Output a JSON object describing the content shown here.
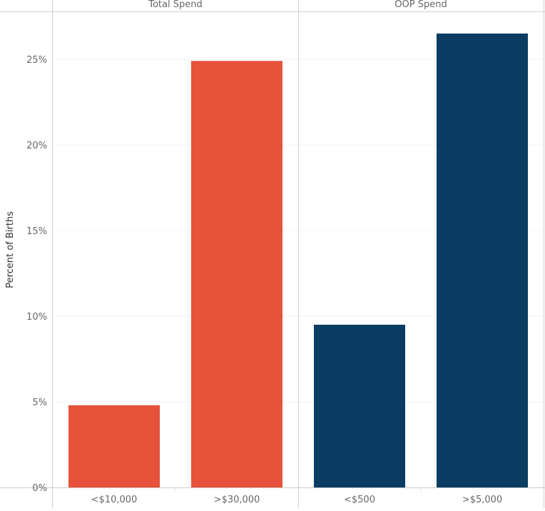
{
  "chart_data": {
    "type": "bar",
    "ylabel": "Percent of Births",
    "xlabel": "",
    "ylim": [
      0,
      27
    ],
    "yticks": [
      "0%",
      "5%",
      "10%",
      "15%",
      "20%",
      "25%"
    ],
    "ytick_values": [
      0,
      5,
      10,
      15,
      20,
      25
    ],
    "grid": true,
    "panels": [
      {
        "title": "Total Spend",
        "color": "#e6523a",
        "categories": [
          "<$10,000",
          ">$30,000"
        ],
        "values": [
          4.8,
          24.9
        ]
      },
      {
        "title": "OOP Spend",
        "color": "#0b3c61",
        "categories": [
          "<$500",
          ">$5,000"
        ],
        "values": [
          9.5,
          26.5
        ]
      }
    ]
  }
}
